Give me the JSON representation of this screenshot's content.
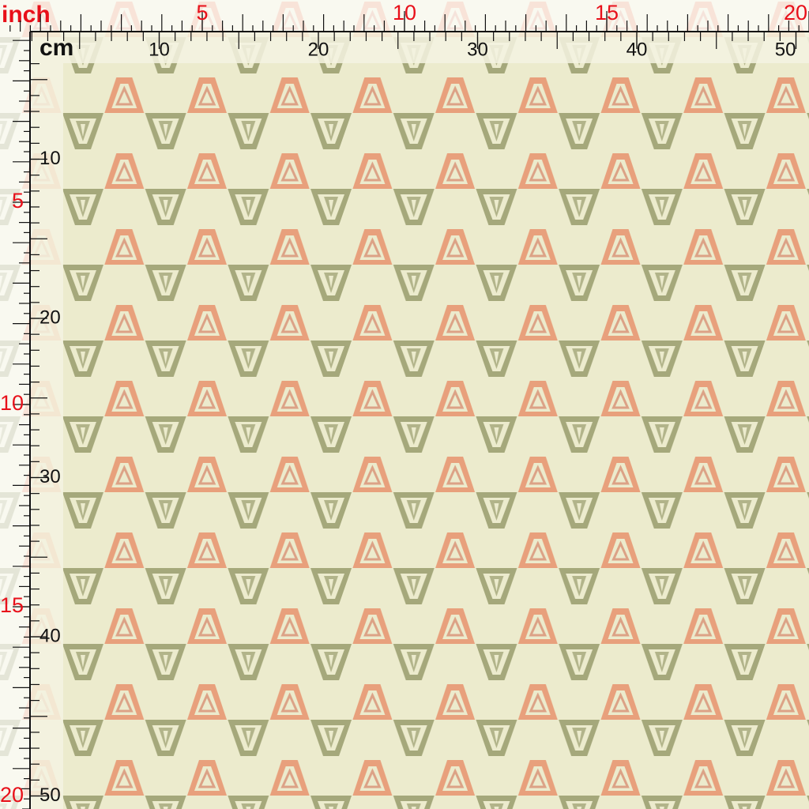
{
  "top_ruler": {
    "inch_unit": "inch",
    "inch_labels": [
      5,
      10,
      15,
      20
    ],
    "cm_unit": "cm",
    "cm_labels": [
      10,
      20,
      30,
      40,
      50
    ]
  },
  "left_ruler": {
    "inch_labels": [
      5,
      10,
      15,
      20
    ],
    "cm_labels": [
      10,
      20,
      30,
      40,
      50
    ]
  }
}
